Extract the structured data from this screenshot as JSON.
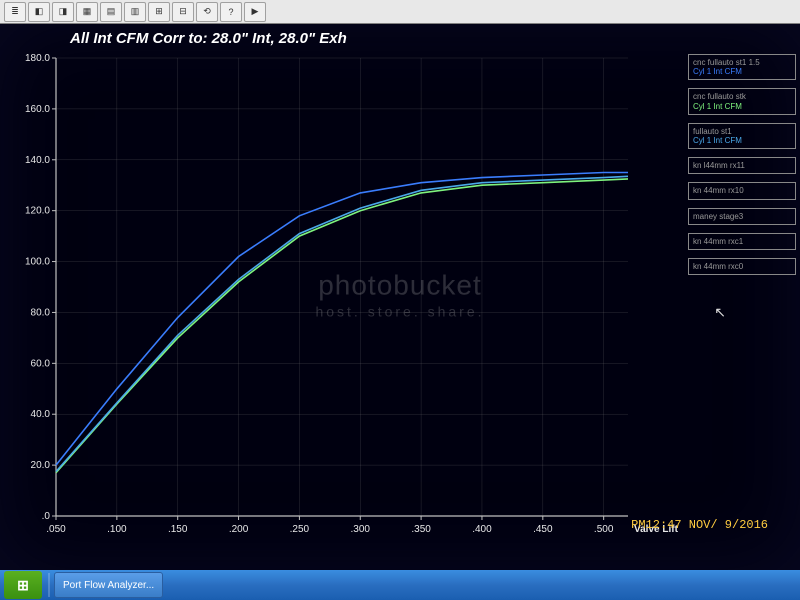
{
  "chart": {
    "title": "All Int CFM   Corr to: 28.0\" Int, 28.0\" Exh",
    "type": "line",
    "background_color": "#000010",
    "grid_color": "#808080",
    "axis_color": "#c0c0c0",
    "title_color": "#ffffff",
    "title_fontsize": 15,
    "label_color": "#e8e8e8",
    "label_fontsize": 10,
    "xlabel": "Valve Lift",
    "xlim": [
      0.05,
      0.52
    ],
    "xticks": [
      0.05,
      0.1,
      0.15,
      0.2,
      0.25,
      0.3,
      0.35,
      0.4,
      0.45,
      0.5
    ],
    "xtick_labels": [
      ".050",
      ".100",
      ".150",
      ".200",
      ".250",
      ".300",
      ".350",
      ".400",
      ".450",
      ".500"
    ],
    "ylim": [
      0,
      180
    ],
    "yticks": [
      0,
      20,
      40,
      60,
      80,
      100,
      120,
      140,
      160,
      180
    ],
    "ytick_labels": [
      ".0",
      "20.0",
      "40.0",
      "60.0",
      "80.0",
      "100.0",
      "120.0",
      "140.0",
      "160.0",
      "180.0"
    ],
    "series": [
      {
        "name": "cnc fullauto st1 1.5 - Cyl 1 Int CFM",
        "color": "#3a7dfd",
        "line_width": 1.6,
        "x": [
          0.05,
          0.1,
          0.15,
          0.2,
          0.25,
          0.3,
          0.35,
          0.4,
          0.45,
          0.5,
          0.52
        ],
        "y": [
          20,
          50,
          78,
          102,
          118,
          127,
          131,
          133,
          134,
          135,
          135
        ]
      },
      {
        "name": "cnc fullauto stk - Cyl 1 Int CFM",
        "color": "#7ef37e",
        "line_width": 1.6,
        "x": [
          0.05,
          0.1,
          0.15,
          0.2,
          0.25,
          0.3,
          0.35,
          0.4,
          0.45,
          0.5,
          0.52
        ],
        "y": [
          17,
          44,
          70,
          92,
          110,
          120,
          127,
          130,
          131,
          132,
          132.5
        ]
      },
      {
        "name": "fullauto st1 - Cyl 1 Int CFM",
        "color": "#4aa8e8",
        "line_width": 1.6,
        "x": [
          0.05,
          0.1,
          0.15,
          0.2,
          0.25,
          0.3,
          0.35,
          0.4,
          0.45,
          0.5,
          0.52
        ],
        "y": [
          17.5,
          44.5,
          71,
          93,
          111,
          121,
          128,
          131,
          132,
          133,
          133.5
        ]
      }
    ]
  },
  "legend": {
    "items": [
      {
        "line1": "cnc fullauto st1 1.5",
        "line2": "Cyl 1 Int CFM",
        "color": "#3a7dfd"
      },
      {
        "line1": "cnc fullauto stk",
        "line2": "Cyl 1 Int CFM",
        "color": "#7ef37e"
      },
      {
        "line1": "fullauto st1",
        "line2": "Cyl 1 Int CFM",
        "color": "#4aa8e8"
      },
      {
        "line1": "kn l44mm rx11",
        "line2": "",
        "color": "#888888"
      },
      {
        "line1": "kn 44mm rx10",
        "line2": "",
        "color": "#888888"
      },
      {
        "line1": "maney stage3",
        "line2": "",
        "color": "#888888"
      },
      {
        "line1": "kn 44mm rxc1",
        "line2": "",
        "color": "#888888"
      },
      {
        "line1": "kn 44mm rxc0",
        "line2": "",
        "color": "#888888"
      }
    ]
  },
  "taskbar": {
    "start_label": "⊞",
    "buttons": [
      {
        "label": "Port Flow Analyzer..."
      }
    ]
  },
  "clock": {
    "text": "PM12:47 NOV/ 9/2016"
  },
  "watermark": {
    "line1": "photobucket",
    "line2": "host. store. share."
  },
  "toolbar": {
    "icons": [
      "≣",
      "◧",
      "◨",
      "▦",
      "▤",
      "▥",
      "⊞",
      "⊟",
      "⟲",
      "?",
      "▶"
    ]
  }
}
